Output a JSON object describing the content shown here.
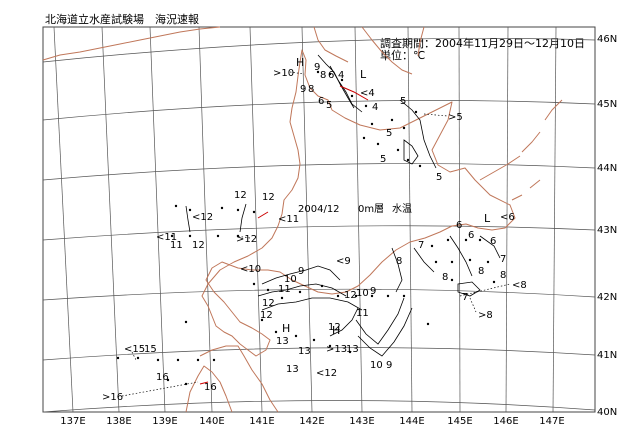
{
  "header": {
    "source": "北海道立水産試験場　海況速報",
    "period": "調査期間：2004年11月29日〜12月10日",
    "unit": "単位：℃"
  },
  "map_title": {
    "date": "2004/12",
    "layer": "0m層",
    "variable": "水温"
  },
  "axes": {
    "longitude_ticks": [
      "137E",
      "138E",
      "139E",
      "140E",
      "141E",
      "142E",
      "143E",
      "144E",
      "145E",
      "146E",
      "147E"
    ],
    "latitude_ticks": [
      "40N",
      "41N",
      "42N",
      "43N",
      "44N",
      "45N",
      "46N"
    ]
  },
  "colors": {
    "coastline": "#c0775a",
    "grid": "#555555",
    "contour": "#000000",
    "highlight": "#cc0000"
  },
  "pressure_marks": [
    "H",
    "L",
    "H",
    "L",
    "H"
  ],
  "temperature_labels": [
    ">10",
    "9",
    "8",
    "6",
    "4",
    "<4",
    "9",
    "8",
    "6",
    "5",
    "4",
    "5",
    ">5",
    "5",
    "5",
    "5",
    "12",
    "12",
    "<12",
    "<11",
    "11",
    "12",
    "<11",
    ">12",
    "<10",
    "10",
    "9",
    "<9",
    "11",
    "12",
    "12",
    "10",
    "9",
    "8",
    "7",
    "7",
    "8",
    "<6",
    "6",
    "6",
    "6",
    "7",
    "8",
    "<8",
    "8",
    ">8",
    "12",
    "13",
    "13",
    ">13",
    "13",
    "11",
    "12",
    "10",
    "9",
    "<12",
    "<15",
    "15",
    "16",
    "13",
    ">16",
    "16"
  ]
}
